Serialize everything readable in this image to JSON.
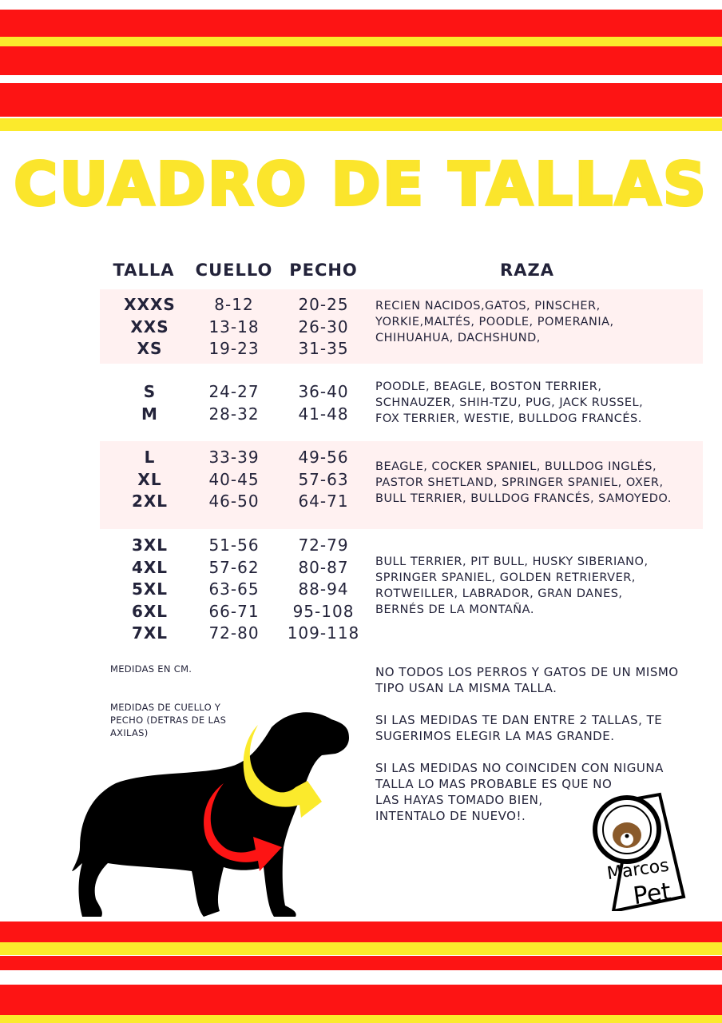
{
  "title": "CUADRO DE TALLAS",
  "colors": {
    "red": "#fd1414",
    "yellow": "#fbea2c",
    "text": "#23233a",
    "band": "#fff1f1"
  },
  "table": {
    "headers": {
      "talla": "TALLA",
      "cuello": "CUELLO",
      "pecho": "PECHO",
      "raza": "RAZA"
    },
    "groups": [
      {
        "tallas": [
          "XXXS",
          "XXS",
          "XS"
        ],
        "cuello": [
          "8-12",
          "13-18",
          "19-23"
        ],
        "pecho": [
          "20-25",
          "26-30",
          "31-35"
        ],
        "raza": [
          "RECIEN NACIDOS,GATOS, PINSCHER,",
          "YORKIE,MALTÉS, POODLE, POMERANIA,",
          "CHIHUAHUA, DACHSHUND,"
        ]
      },
      {
        "tallas": [
          "S",
          "M"
        ],
        "cuello": [
          "24-27",
          "28-32"
        ],
        "pecho": [
          "36-40",
          "41-48"
        ],
        "raza": [
          "POODLE, BEAGLE, BOSTON TERRIER,",
          "SCHNAUZER, SHIH-TZU, PUG, JACK RUSSEL,",
          "FOX TERRIER, WESTIE, BULLDOG FRANCÉS."
        ]
      },
      {
        "tallas": [
          "L",
          "XL",
          "2XL"
        ],
        "cuello": [
          "33-39",
          "40-45",
          "46-50"
        ],
        "pecho": [
          "49-56",
          "57-63",
          "64-71"
        ],
        "raza": [
          "BEAGLE, COCKER SPANIEL, BULLDOG INGLÉS,",
          "PASTOR SHETLAND, SPRINGER SPANIEL, OXER,",
          "BULL TERRIER, BULLDOG FRANCÉS, SAMOYEDO."
        ]
      },
      {
        "tallas": [
          "3XL",
          "4XL",
          "5XL",
          "6XL",
          "7XL"
        ],
        "cuello": [
          "51-56",
          "57-62",
          "63-65",
          "66-71",
          "72-80"
        ],
        "pecho": [
          "72-79",
          "80-87",
          "88-94",
          "95-108",
          "109-118"
        ],
        "raza": [
          "BULL TERRIER, PIT BULL, HUSKY SIBERIANO,",
          "SPRINGER SPANIEL, GOLDEN RETRIERVER,",
          "ROTWEILLER, LABRADOR, GRAN DANES,",
          "BERNÉS DE LA MONTAÑA."
        ]
      }
    ]
  },
  "notes": {
    "units": "MEDIDAS EN CM.",
    "measure": [
      "MEDIDAS DE CUELLO Y",
      "PECHO (DETRAS DE LAS",
      "AXILAS)"
    ]
  },
  "tips": [
    [
      "NO TODOS LOS PERROS Y GATOS DE UN MISMO",
      "TIPO USAN LA MISMA TALLA."
    ],
    [
      "SI LAS MEDIDAS TE DAN ENTRE 2 TALLAS, TE",
      "SUGERIMOS ELEGIR LA MAS GRANDE."
    ],
    [
      "SI LAS MEDIDAS NO COINCIDEN CON NIGUNA",
      "TALLA LO MAS PROBABLE ES QUE NO",
      "LAS HAYAS TOMADO BIEN,",
      "INTENTALO DE NUEVO!."
    ]
  ],
  "logo": {
    "line1": "Marcos",
    "line2": "Pet"
  }
}
